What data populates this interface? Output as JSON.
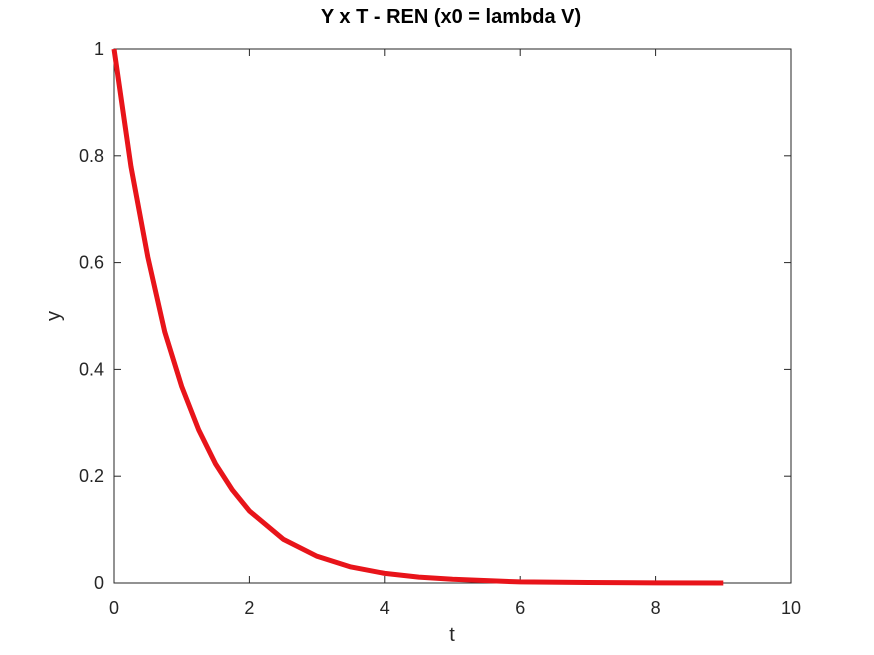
{
  "chart_data": {
    "type": "line",
    "title": "Y x T - REN (x0 = lambda V)",
    "xlabel": "t",
    "ylabel": "y",
    "xlim": [
      0,
      10
    ],
    "ylim": [
      0,
      1
    ],
    "xticks": [
      0,
      2,
      4,
      6,
      8,
      10
    ],
    "xtick_labels": [
      "0",
      "2",
      "4",
      "6",
      "8",
      "10"
    ],
    "yticks": [
      0,
      0.2,
      0.4,
      0.6,
      0.8,
      1
    ],
    "ytick_labels": [
      "0",
      "0.2",
      "0.4",
      "0.6",
      "0.8",
      "1"
    ],
    "grid": false,
    "legend": "none",
    "series": [
      {
        "color": "#e8141a",
        "x": [
          0,
          0.25,
          0.5,
          0.75,
          1,
          1.25,
          1.5,
          1.75,
          2,
          2.5,
          3,
          3.5,
          4,
          4.5,
          5,
          6,
          7,
          8,
          9
        ],
        "y": [
          1,
          0.78,
          0.61,
          0.47,
          0.368,
          0.287,
          0.223,
          0.174,
          0.135,
          0.082,
          0.05,
          0.03,
          0.018,
          0.011,
          0.007,
          0.002,
          0.001,
          0.0003,
          0.0001
        ]
      }
    ]
  }
}
